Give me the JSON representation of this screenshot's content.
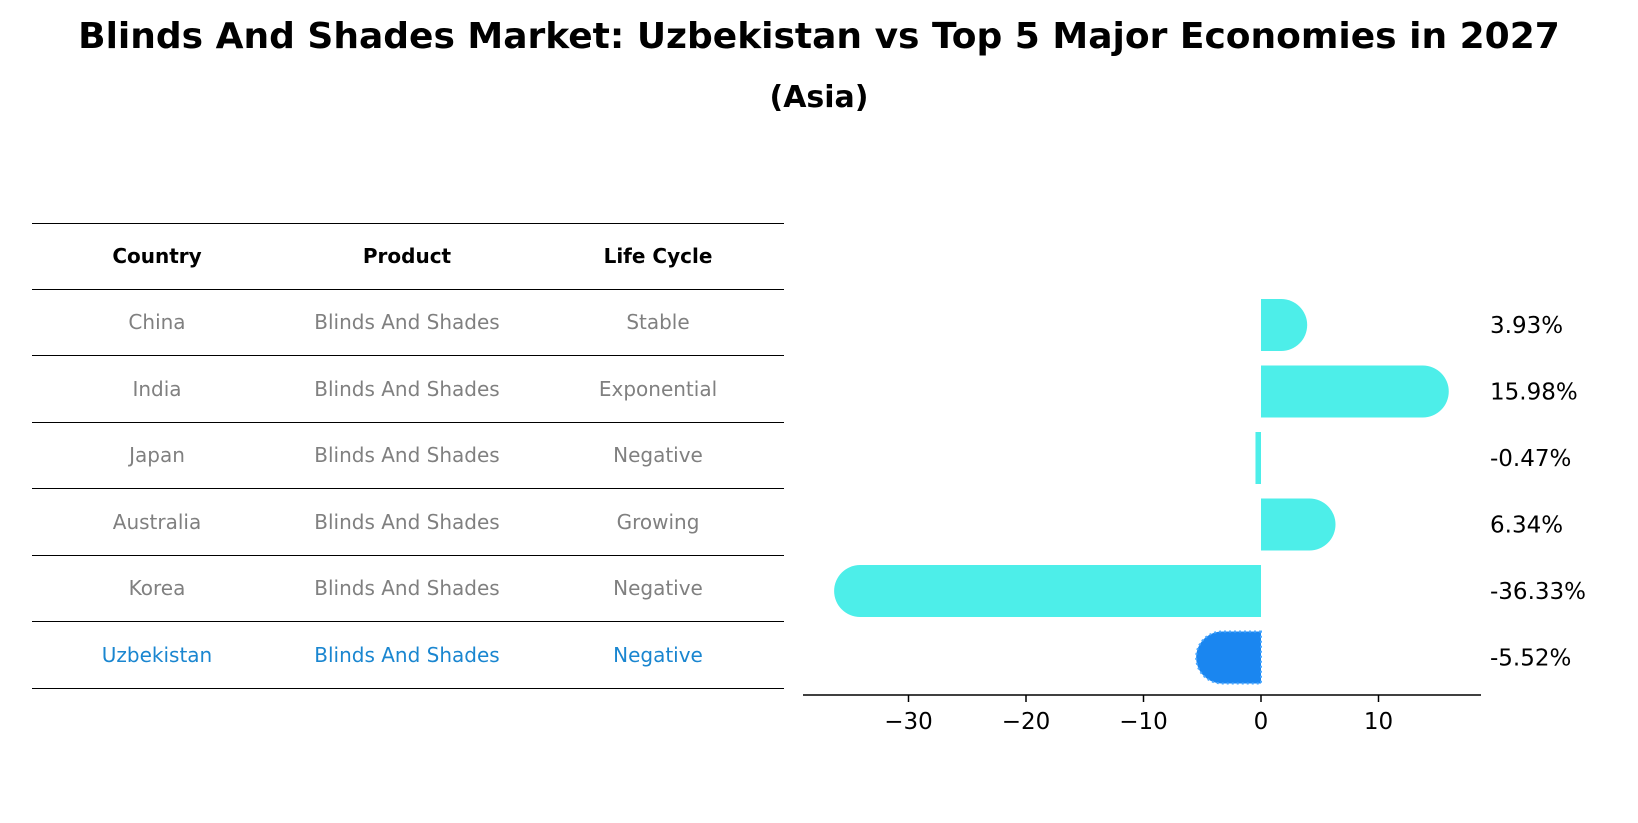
{
  "title": "Blinds And Shades Market: Uzbekistan vs Top 5 Major Economies in 2027",
  "subtitle": "(Asia)",
  "table": {
    "headers": [
      "Country",
      "Product",
      "Life Cycle"
    ],
    "rows": [
      [
        "China",
        "Blinds And Shades",
        "Stable"
      ],
      [
        "India",
        "Blinds And Shades",
        "Exponential"
      ],
      [
        "Japan",
        "Blinds And Shades",
        "Negative"
      ],
      [
        "Australia",
        "Blinds And Shades",
        "Growing"
      ],
      [
        "Korea",
        "Blinds And Shades",
        "Negative"
      ],
      [
        "Uzbekistan",
        "Blinds And Shades",
        "Negative"
      ]
    ],
    "highlight_row": 5
  },
  "colors": {
    "bar": "#4deee9",
    "highlight_bar": "#1a86f0",
    "muted_text": "#808080",
    "highlight_text": "#1a86d0"
  },
  "chart_data": {
    "type": "bar",
    "orientation": "horizontal",
    "categories": [
      "China",
      "India",
      "Japan",
      "Australia",
      "Korea",
      "Uzbekistan"
    ],
    "values": [
      3.93,
      15.98,
      -0.47,
      6.34,
      -36.33,
      -5.52
    ],
    "value_labels": [
      "3.93%",
      "15.98%",
      "-0.47%",
      "6.34%",
      "-36.33%",
      "-5.52%"
    ],
    "highlight_index": 5,
    "xlim": [
      -39,
      19
    ],
    "xticks": [
      -30,
      -20,
      -10,
      0,
      10
    ],
    "xtick_labels": [
      "−30",
      "−20",
      "−10",
      "0",
      "10"
    ],
    "grid": false
  }
}
